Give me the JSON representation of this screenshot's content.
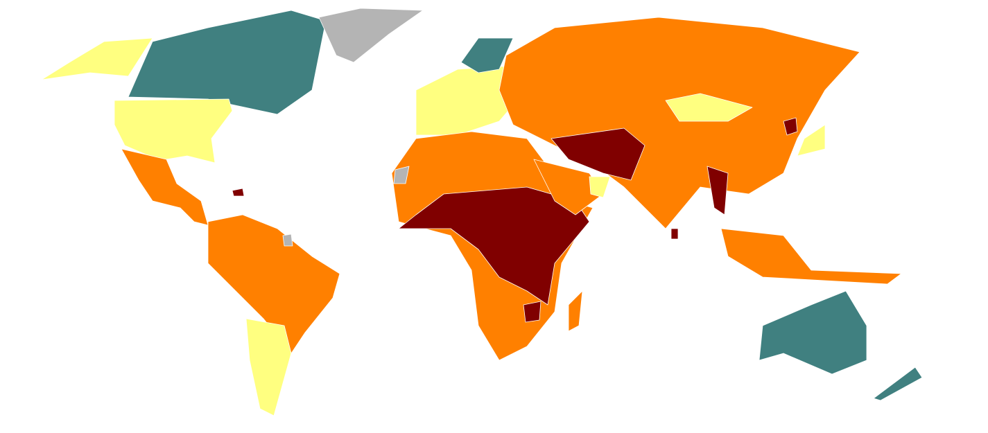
{
  "map": {
    "palette": [
      "#ffff80",
      "#ff8000",
      "#800000",
      "#408080",
      "#b4b4b4"
    ]
  }
}
